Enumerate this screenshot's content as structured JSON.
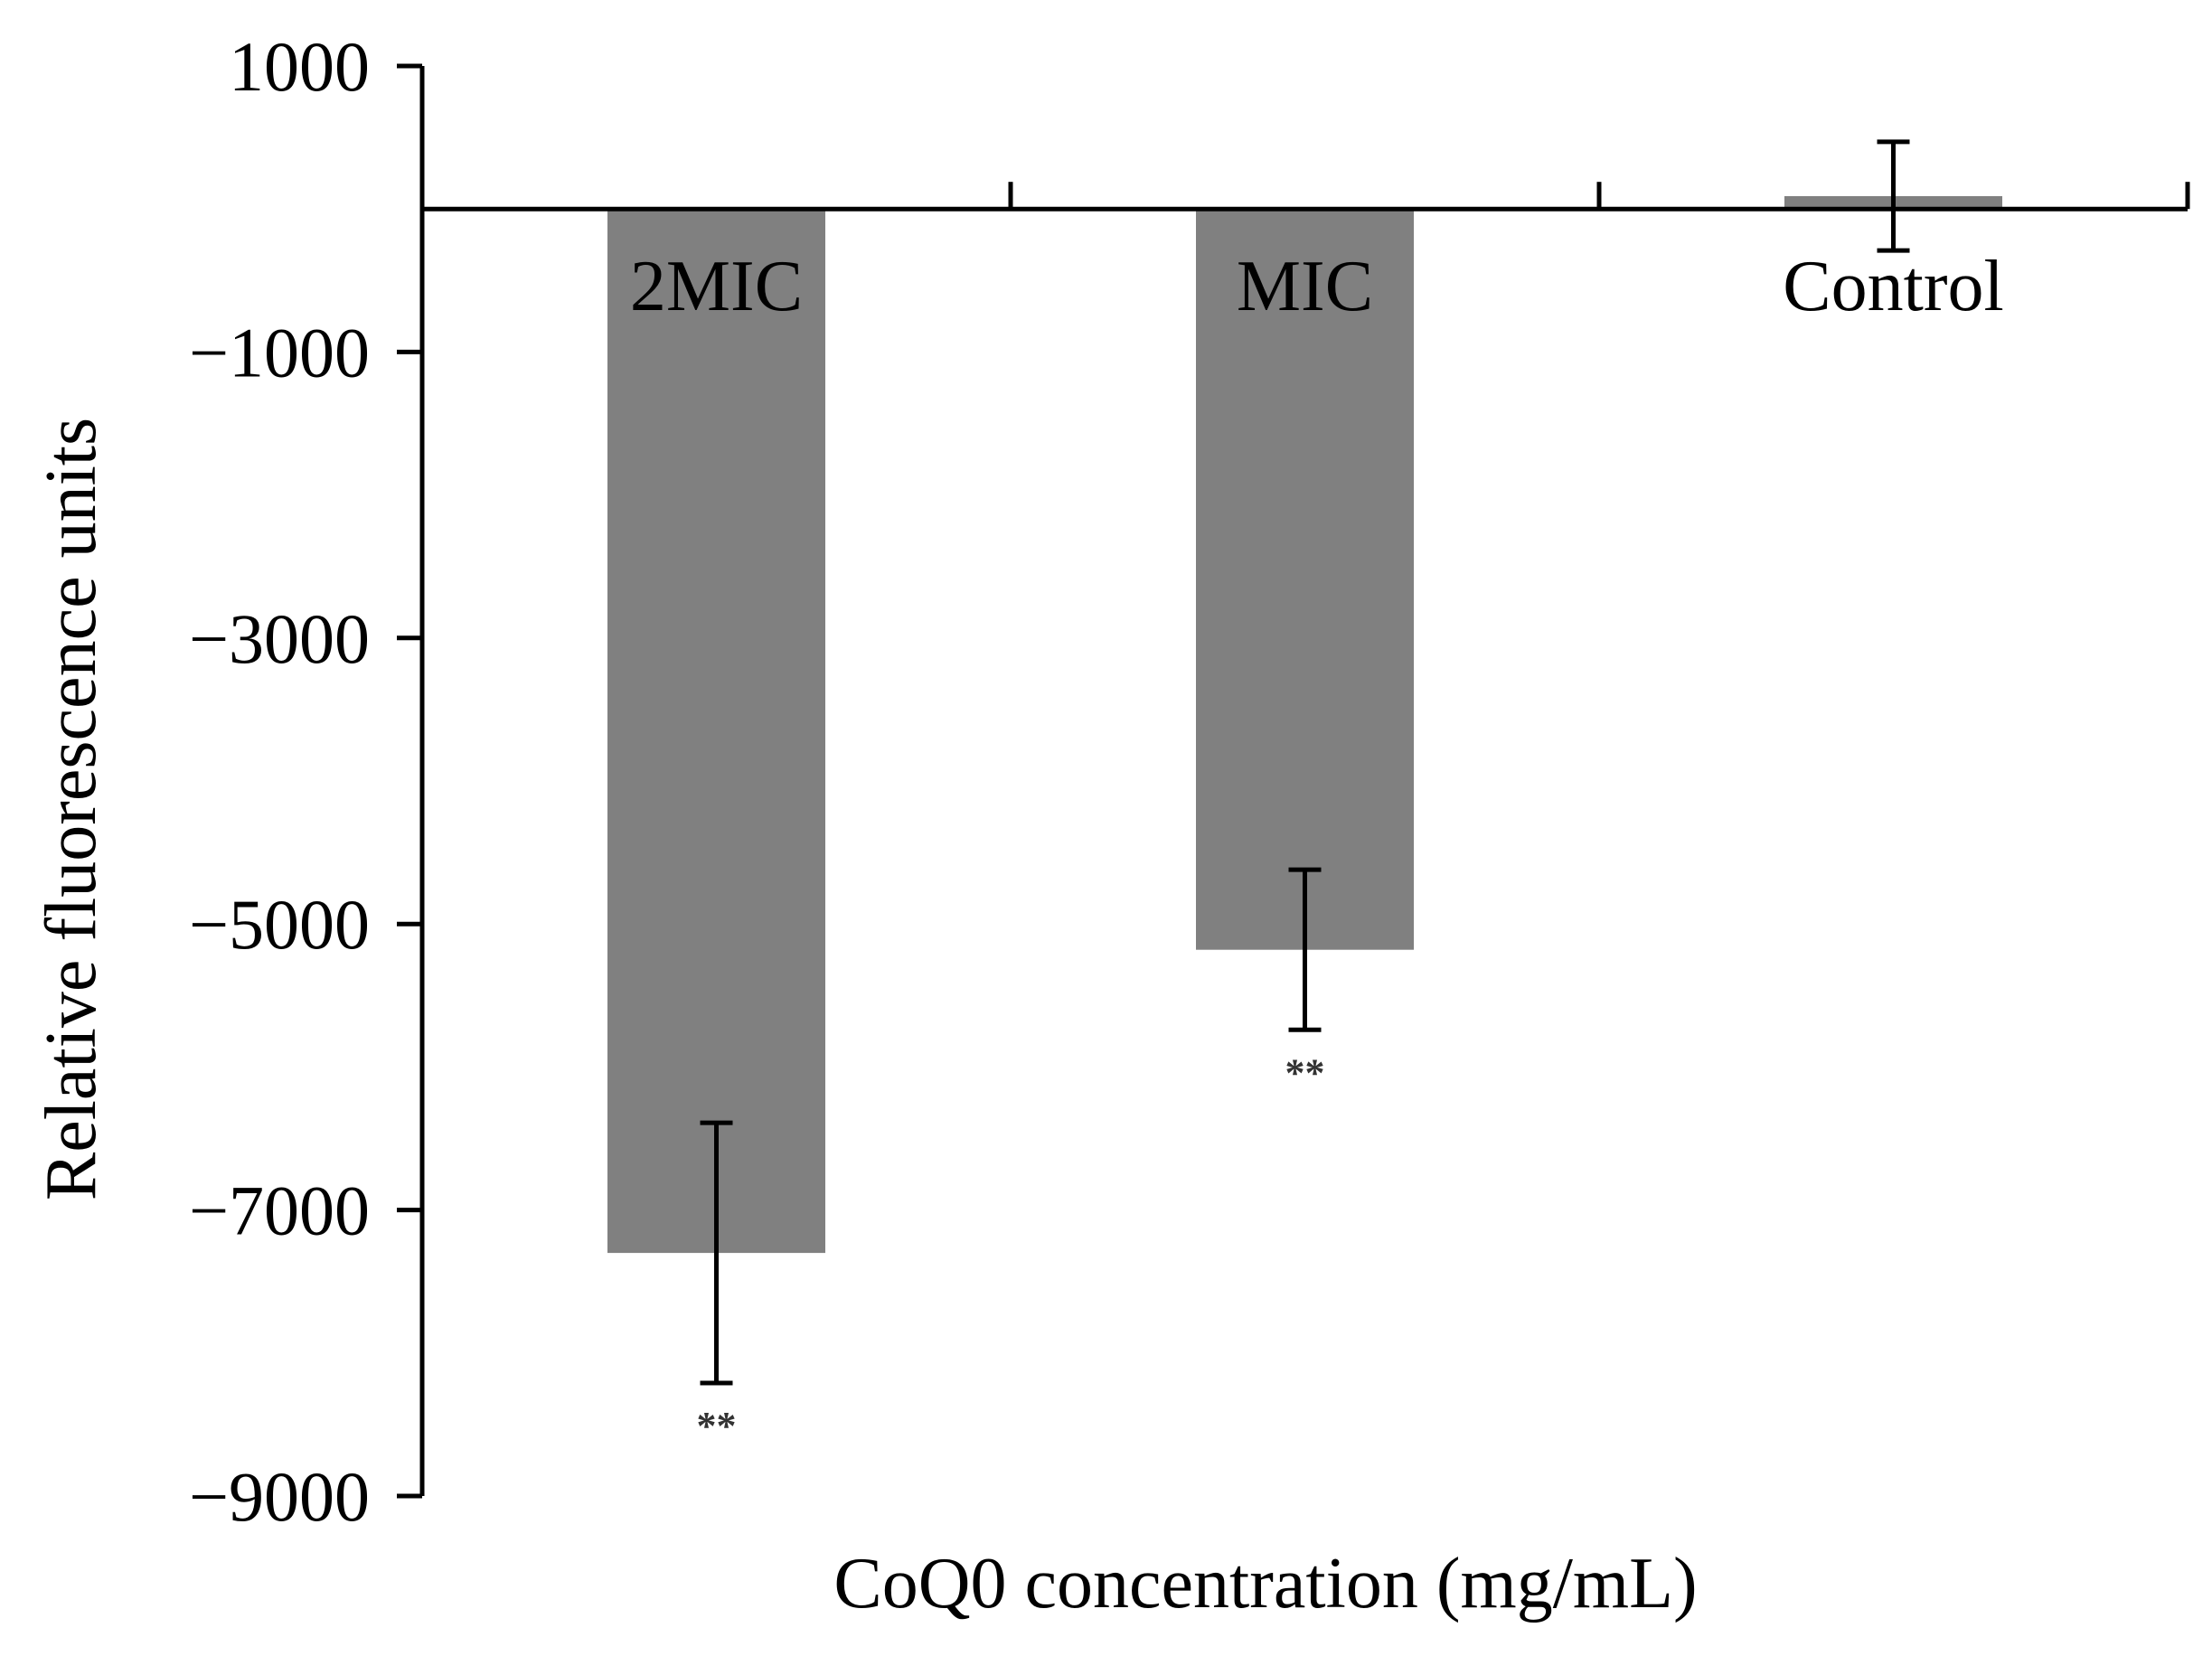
{
  "chart_data": {
    "type": "bar",
    "title": "",
    "xlabel": "CoQ0 concentration (mg/mL)",
    "ylabel": "Relative fluorescence units",
    "ylim": [
      -9000,
      1000
    ],
    "yticks": [
      1000,
      -1000,
      -3000,
      -5000,
      -7000,
      -9000
    ],
    "ytick_labels": [
      "1000",
      "−1000",
      "−3000",
      "−5000",
      "−7000",
      "−9000"
    ],
    "categories": [
      "2MIC",
      "MIC",
      "Control"
    ],
    "values": [
      -7300,
      -5180,
      90
    ],
    "errors": [
      910,
      560,
      380
    ],
    "significance": [
      "**",
      "**",
      ""
    ],
    "bar_color": "#808080",
    "grid": false,
    "legend": "none"
  }
}
